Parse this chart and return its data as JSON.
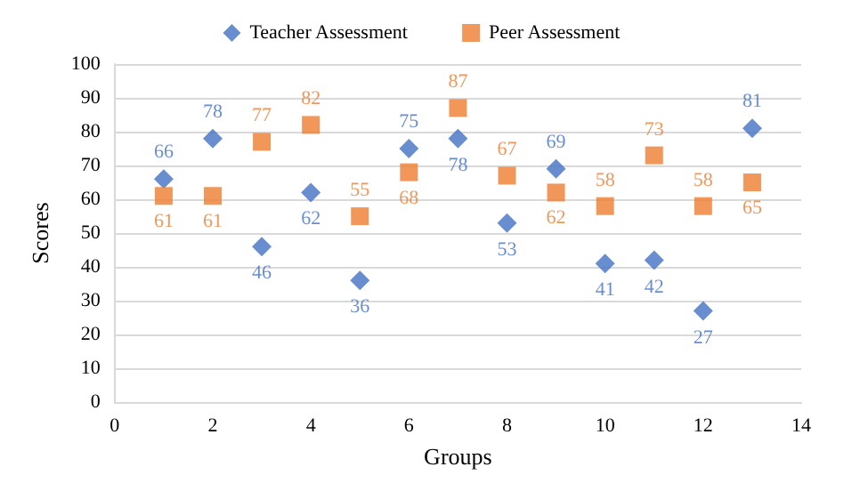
{
  "chart_data": {
    "type": "scatter",
    "xlabel": "Groups",
    "ylabel": "Scores",
    "x": [
      1,
      2,
      3,
      4,
      5,
      6,
      7,
      8,
      9,
      10,
      11,
      12,
      13
    ],
    "series": [
      {
        "name": "Teacher Assessment",
        "color": "#4472c4",
        "marker": "diamond",
        "values": [
          66,
          78,
          46,
          62,
          36,
          75,
          78,
          53,
          69,
          41,
          42,
          27,
          81
        ]
      },
      {
        "name": "Peer Assessment",
        "color": "#ed7d31",
        "marker": "square",
        "values": [
          61,
          61,
          77,
          82,
          55,
          68,
          87,
          67,
          62,
          58,
          73,
          58,
          65
        ]
      }
    ],
    "xlim": [
      0,
      14
    ],
    "xticks": [
      0,
      2,
      4,
      6,
      8,
      10,
      12,
      14
    ],
    "ylim": [
      0,
      100
    ],
    "yticks": [
      0,
      10,
      20,
      30,
      40,
      50,
      60,
      70,
      80,
      90,
      100
    ],
    "grid": "y",
    "legend": "top",
    "data_labels": true
  }
}
